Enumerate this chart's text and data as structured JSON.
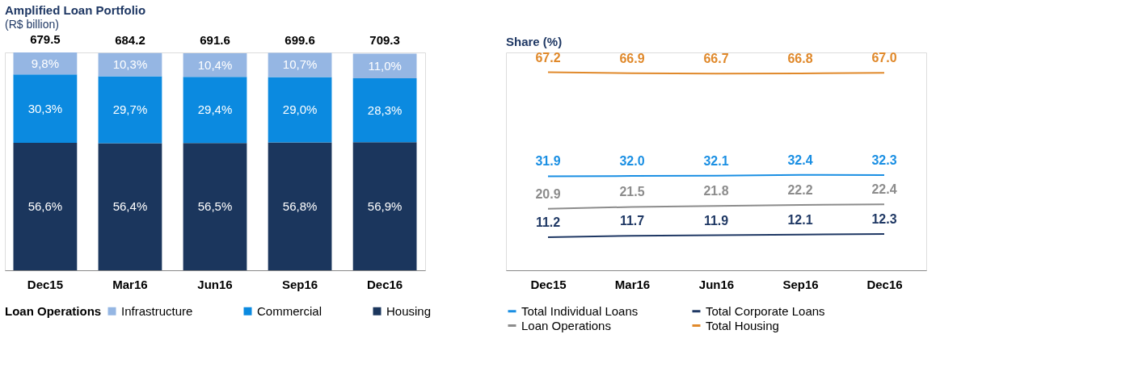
{
  "chart_data": [
    {
      "type": "bar",
      "title": "Amplified Loan Portfolio",
      "subtitle": "(R$ billion)",
      "stacked": true,
      "legend": "bottom",
      "legend_title": "Loan Operations",
      "categories": [
        "Dec15",
        "Mar16",
        "Jun16",
        "Sep16",
        "Dec16"
      ],
      "annotations": [
        "679.5",
        "684.2",
        "691.6",
        "699.6",
        "709.3"
      ],
      "series": [
        {
          "name": "Housing",
          "color": "#1b365d",
          "values": [
            56.6,
            56.4,
            56.5,
            56.8,
            56.9
          ],
          "value_labels": [
            "56,6%",
            "56,4%",
            "56,5%",
            "56,8%",
            "56,9%"
          ]
        },
        {
          "name": "Commercial",
          "color": "#0b8ae0",
          "values": [
            30.3,
            29.7,
            29.4,
            29.0,
            28.3
          ],
          "value_labels": [
            "30,3%",
            "29,7%",
            "29,4%",
            "29,0%",
            "28,3%"
          ]
        },
        {
          "name": "Infrastructure",
          "color": "#95b6e3",
          "values": [
            9.8,
            10.3,
            10.4,
            10.7,
            11.0
          ],
          "value_labels": [
            "9,8%",
            "10,3%",
            "10,4%",
            "10,7%",
            "11,0%"
          ]
        }
      ]
    },
    {
      "type": "line",
      "title": "Share (%)",
      "legend": "bottom",
      "categories": [
        "Dec15",
        "Mar16",
        "Jun16",
        "Sep16",
        "Dec16"
      ],
      "series": [
        {
          "name": "Total Individual Loans",
          "color": "#1a8fe3",
          "values": [
            31.9,
            32.0,
            32.1,
            32.4,
            32.3
          ],
          "value_labels": [
            "31.9",
            "32.0",
            "32.1",
            "32.4",
            "32.3"
          ]
        },
        {
          "name": "Total Corporate Loans",
          "color": "#1f3864",
          "values": [
            11.2,
            11.7,
            11.9,
            12.1,
            12.3
          ],
          "value_labels": [
            "11.2",
            "11.7",
            "11.9",
            "12.1",
            "12.3"
          ]
        },
        {
          "name": "Loan Operations",
          "color": "#8c8c8c",
          "values": [
            20.9,
            21.5,
            21.8,
            22.2,
            22.4
          ],
          "value_labels": [
            "20.9",
            "21.5",
            "21.8",
            "22.2",
            "22.4"
          ]
        },
        {
          "name": "Total Housing",
          "color": "#e0892b",
          "values": [
            67.2,
            66.9,
            66.7,
            66.8,
            67.0
          ],
          "value_labels": [
            "67.2",
            "66.9",
            "66.7",
            "66.8",
            "67.0"
          ]
        }
      ]
    }
  ]
}
